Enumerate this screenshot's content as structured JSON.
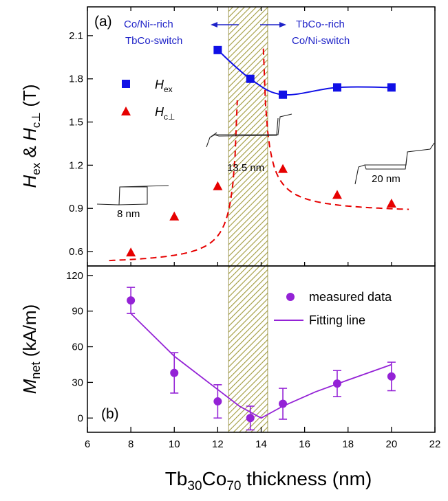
{
  "chart_data": [
    {
      "type": "scatter",
      "panel_label": "(a)",
      "ylabel": {
        "main": "H",
        "sub1": "ex",
        "amp": " & ",
        "main2": "H",
        "sub2": "c⊥",
        "unit": " (T)"
      },
      "ylim": [
        0.5,
        2.3
      ],
      "yticks": [
        "0.6",
        "0.9",
        "1.2",
        "1.5",
        "1.8",
        "2.1"
      ],
      "xlim": [
        6,
        22
      ],
      "colors": {
        "hex": "#1010e6",
        "hc": "#e60000",
        "annotation": "#1e22c8",
        "hatch": "#a09a3c"
      },
      "series": [
        {
          "name": "Hex",
          "name_main": "H",
          "name_sub": "ex",
          "marker": "square",
          "color": "#1010e6",
          "x": [
            12,
            13.5,
            15,
            17.5,
            20
          ],
          "y": [
            2.0,
            1.8,
            1.69,
            1.74,
            1.74
          ]
        },
        {
          "name": "Hc⊥",
          "name_main": "H",
          "name_sub": "c⊥",
          "marker": "triangle",
          "color": "#e60000",
          "x": [
            8,
            10,
            12,
            15,
            17.5,
            20
          ],
          "y": [
            0.59,
            0.84,
            1.05,
            1.17,
            0.99,
            0.93
          ]
        }
      ],
      "annotations": {
        "left_line1": "Co/Ni--rich",
        "left_line2": "TbCo-switch",
        "right_line1": "TbCo--rich",
        "right_line2": "Co/Ni-switch",
        "loop_8": "8 nm",
        "loop_13": "13.5 nm",
        "loop_20": "20 nm"
      },
      "shaded_region_x": [
        12.5,
        14.3
      ]
    },
    {
      "type": "scatter",
      "panel_label": "(b)",
      "ylabel": {
        "main": "M",
        "sub": "net",
        "unit": " (kA/m)"
      },
      "ylim": [
        -12,
        128
      ],
      "yticks": [
        "0",
        "30",
        "60",
        "90",
        "120"
      ],
      "xlabel": {
        "pre": "Tb",
        "sub1": "30",
        "mid": "Co",
        "sub2": "70",
        "post": " thickness (nm)"
      },
      "xlim": [
        6,
        22
      ],
      "xticks": [
        "6",
        "8",
        "10",
        "12",
        "14",
        "16",
        "18",
        "20",
        "22"
      ],
      "color": "#9422d6",
      "series": [
        {
          "name": "measured data",
          "x": [
            8,
            10,
            12,
            13.5,
            15,
            17.5,
            20
          ],
          "y": [
            99,
            38,
            14,
            0,
            12,
            29,
            35
          ],
          "err": [
            11,
            17,
            14,
            10,
            13,
            11,
            12
          ]
        },
        {
          "name": "Fitting line",
          "x": [
            8,
            10,
            12,
            13,
            14,
            15,
            16.5,
            18,
            20
          ],
          "y": [
            88,
            52,
            24,
            10,
            0,
            10,
            22,
            32,
            45
          ]
        }
      ]
    }
  ]
}
